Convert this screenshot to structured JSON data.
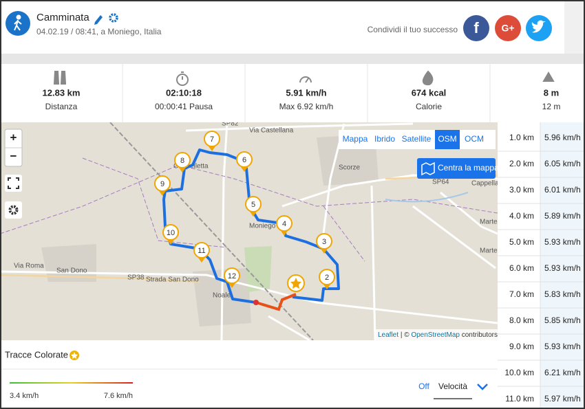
{
  "header": {
    "title": "Camminata",
    "subtitle": "04.02.19 / 08:41, a Moniego, Italia",
    "share": "Condividi il tuo successo"
  },
  "stats": [
    {
      "value": "12.83 km",
      "label": "Distanza"
    },
    {
      "value": "02:10:18",
      "label": "00:00:41 Pausa"
    },
    {
      "value": "5.91 km/h",
      "label": "Max 6.92 km/h"
    },
    {
      "value": "674 kcal",
      "label": "Calorie"
    },
    {
      "value": "8 m",
      "label": "12 m"
    }
  ],
  "map": {
    "layers": [
      "Mappa",
      "Ibrido",
      "Satellite",
      "OSM",
      "OCM"
    ],
    "active_layer": "OSM",
    "center_button": "Centra la mappa",
    "attribution": [
      "Leaflet",
      "| ©",
      "OpenStreetMap",
      "contributors"
    ],
    "place_labels": [
      "Scorze",
      "Cappelletta",
      "Moniego",
      "Noale",
      "San Dono",
      "Via Roma",
      "SP38",
      "Strada San Dono",
      "SP82",
      "Via Castellana",
      "SP64",
      "Cappella",
      "Martello",
      "Martello"
    ],
    "markers": [
      "2",
      "3",
      "4",
      "5",
      "6",
      "7",
      "8",
      "9",
      "10",
      "11",
      "12"
    ]
  },
  "splits": [
    {
      "distance": "1.0 km",
      "speed": "5.96 km/h"
    },
    {
      "distance": "2.0 km",
      "speed": "6.05 km/h"
    },
    {
      "distance": "3.0 km",
      "speed": "6.01 km/h"
    },
    {
      "distance": "4.0 km",
      "speed": "5.89 km/h"
    },
    {
      "distance": "5.0 km",
      "speed": "5.93 km/h"
    },
    {
      "distance": "6.0 km",
      "speed": "5.93 km/h"
    },
    {
      "distance": "7.0 km",
      "speed": "5.83 km/h"
    },
    {
      "distance": "8.0 km",
      "speed": "5.85 km/h"
    },
    {
      "distance": "9.0 km",
      "speed": "5.93 km/h"
    },
    {
      "distance": "10.0 km",
      "speed": "6.21 km/h"
    },
    {
      "distance": "11.0 km",
      "speed": "5.97 km/h"
    }
  ],
  "panel": {
    "title": "Tracce Colorate",
    "min": "3.4 km/h",
    "max": "7.6 km/h",
    "off": "Off",
    "mode": "Velocità"
  }
}
